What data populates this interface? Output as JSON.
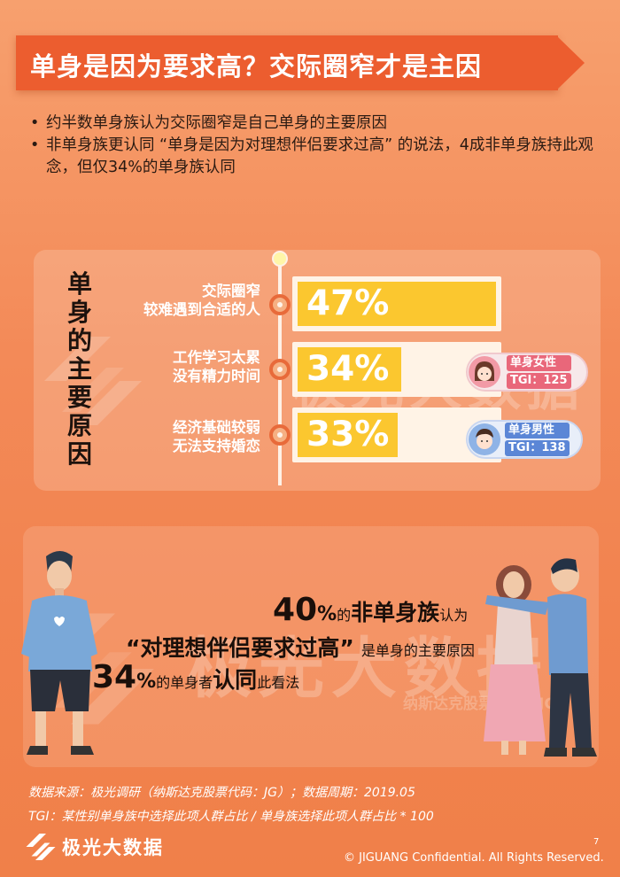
{
  "title": "单身是因为要求高？交际圈窄才是主因",
  "bullets": [
    "约半数单身族认为交际圈窄是自己单身的主要原因",
    "非单身族更认同 “单身是因为对理想伴侣要求过高” 的说法，4成非单身族持此观念，但仅34%的单身族认同"
  ],
  "reasons_title": "单身的主要原因",
  "chart_data": {
    "type": "bar",
    "categories": [
      "交际圈窄 较难遇到合适的人",
      "工作学习太累 没有精力时间",
      "经济基础较弱 无法支持婚恋"
    ],
    "values": [
      47,
      34,
      33
    ],
    "ylim": [
      0,
      50
    ],
    "unit": "%"
  },
  "reasons": [
    {
      "line1": "交际圈窄",
      "line2": "较难遇到合适的人",
      "pct": "47%"
    },
    {
      "line1": "工作学习太累",
      "line2": "没有精力时间",
      "pct": "34%"
    },
    {
      "line1": "经济基础较弱",
      "line2": "无法支持婚恋",
      "pct": "33%"
    }
  ],
  "tgi_female": {
    "label": "单身女性",
    "value": "TGI：125"
  },
  "tgi_male": {
    "label": "单身男性",
    "value": "TGI：138"
  },
  "stat1": {
    "num": "40",
    "pct": "%",
    "de": "的",
    "group": "非单身族",
    "verb": "认为"
  },
  "quote": {
    "text": "“对理想伴侣要求过高”",
    "tail": "是单身的主要原因"
  },
  "stat2": {
    "num": "34",
    "pct": "%",
    "mid": "的单身者",
    "verb": "认同",
    "tail": "此看法"
  },
  "watermark": {
    "brand": "极光大数据",
    "stock": "纳斯达克股票代码：JG"
  },
  "source": "数据来源：极光调研（纳斯达克股票代码：JG）；数据周期：2019.05",
  "tgi_note": "TGI：某性别单身族中选择此项人群占比 / 单身族选择此项人群占比 * 100",
  "logo_text": "极光大数据",
  "page_number": "7",
  "copyright": "© JIGUANG Confidential. All Rights Reserved.",
  "colors": {
    "banner": "#ec5d2f",
    "bar": "#fbc72f",
    "track": "#fff3e6",
    "ring": "#e86a3a"
  }
}
